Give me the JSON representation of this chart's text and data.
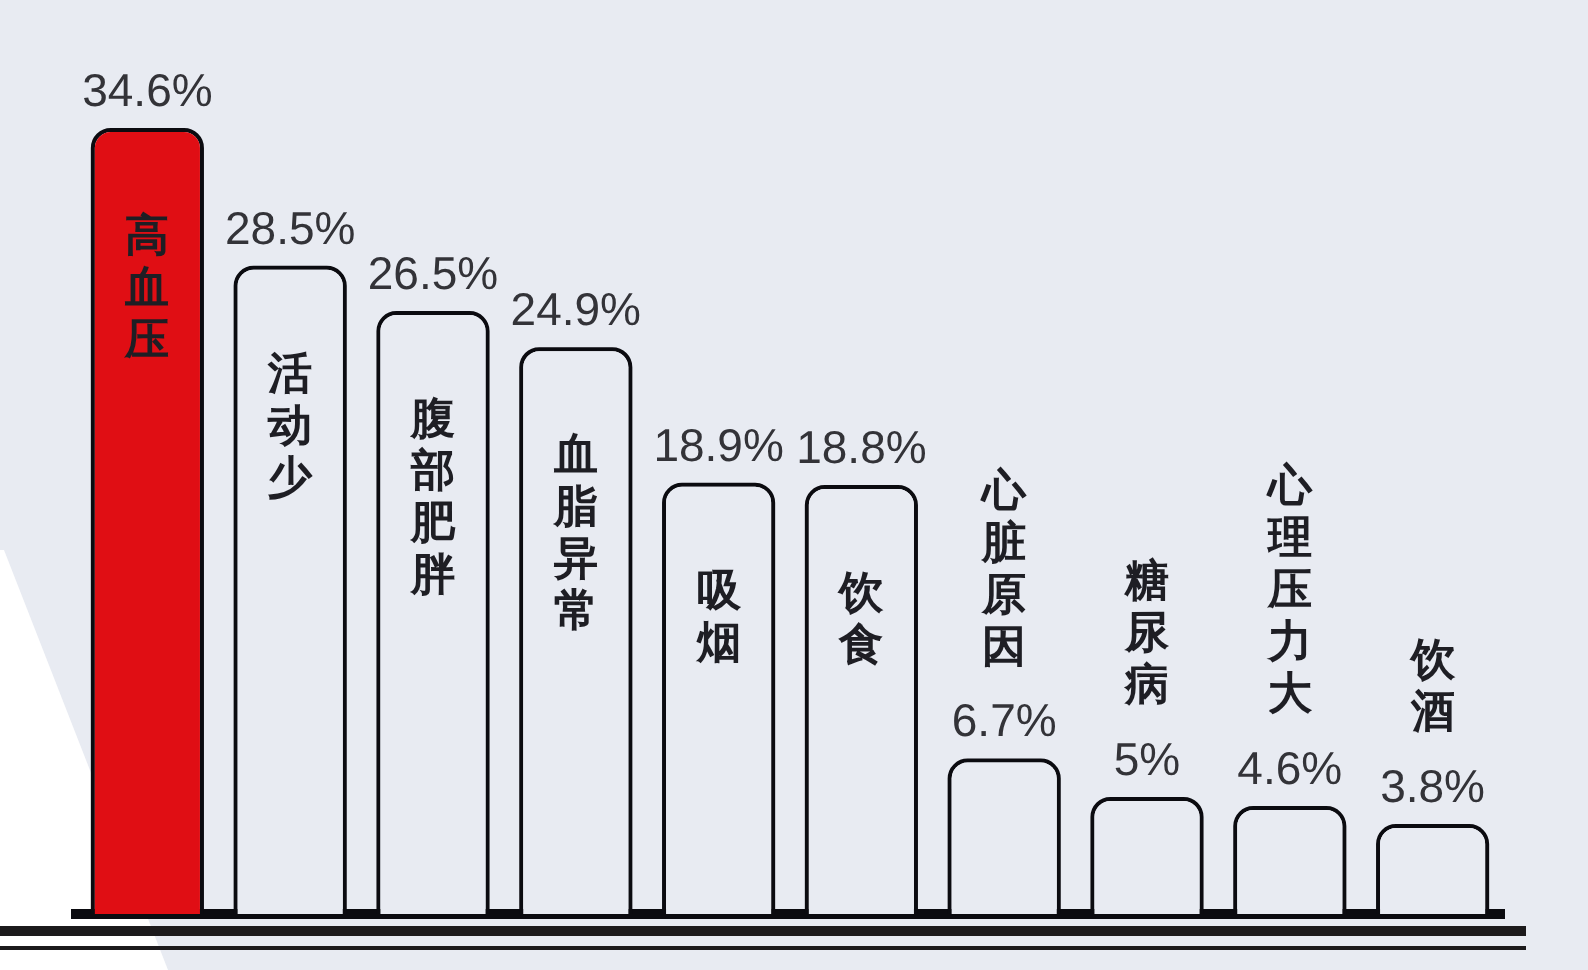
{
  "chart_data": {
    "type": "bar",
    "categories": [
      "高血压",
      "活动少",
      "腹部肥胖",
      "血脂异常",
      "吸烟",
      "饮食",
      "心脏原因",
      "糖尿病",
      "心理压力大",
      "饮酒"
    ],
    "values": [
      34.6,
      28.5,
      26.5,
      24.9,
      18.9,
      18.8,
      6.7,
      5,
      4.6,
      3.8
    ],
    "colors": [
      "#e00e14",
      "#e8ebf2",
      "#e8ebf2",
      "#e8ebf2",
      "#e8ebf2",
      "#e8ebf2",
      "#e8ebf2",
      "#e8ebf2",
      "#e8ebf2",
      "#e8ebf2"
    ],
    "value_labels": [
      "34.6%",
      "28.5%",
      "26.5%",
      "24.9%",
      "18.9%",
      "18.8%",
      "6.7%",
      "5%",
      "4.6%",
      "3.8%"
    ]
  }
}
